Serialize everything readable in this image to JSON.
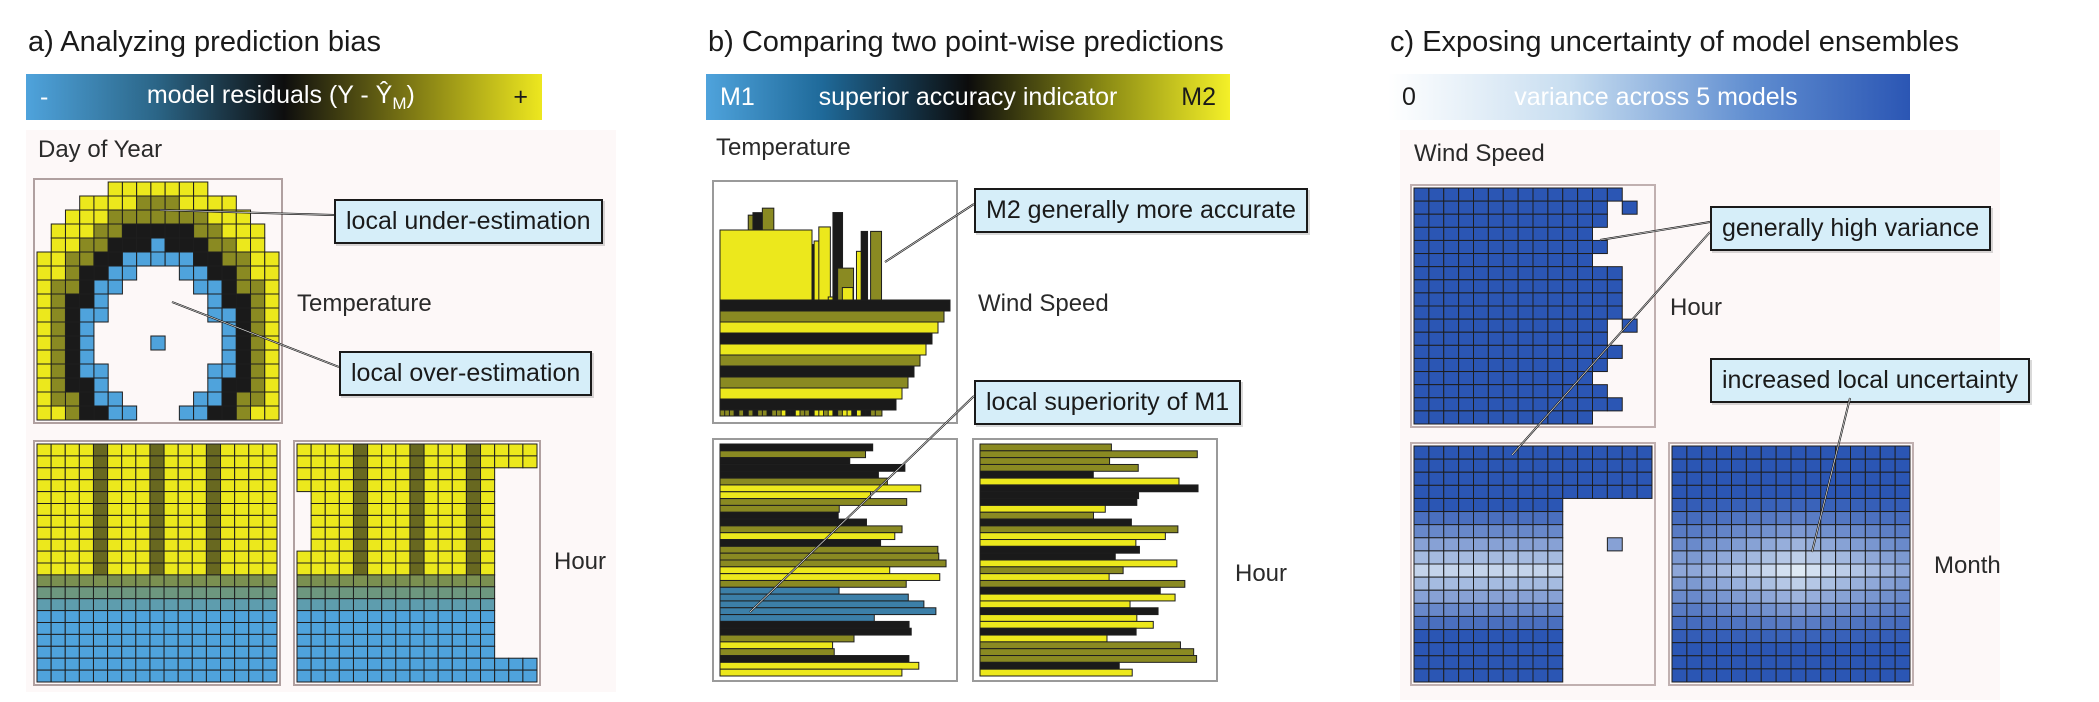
{
  "panels": [
    {
      "title": "a) Analyzing prediction bias",
      "colorbar": {
        "left": "-",
        "middle": "model residuals (Y - Ŷ",
        "subscript": "M",
        "middle_end": ")",
        "right": "+"
      },
      "axis_labels": {
        "top": "Day of Year",
        "right_top": "Temperature",
        "right_bottom": "Hour"
      },
      "callouts": [
        "local under-estimation",
        "local over-estimation"
      ]
    },
    {
      "title": "b) Comparing two point-wise predictions",
      "colorbar": {
        "left": "M1",
        "middle": "superior accuracy indicator",
        "right": "M2"
      },
      "axis_labels": {
        "top": "Temperature",
        "right_top": "Wind Speed",
        "right_bottom": "Hour"
      },
      "callouts": [
        "M2 generally more accurate",
        "local superiority of M1"
      ]
    },
    {
      "title": "c) Exposing uncertainty of model ensembles",
      "colorbar": {
        "left": "0",
        "middle": "variance across 5 models"
      },
      "axis_labels": {
        "top": "Wind Speed",
        "right_top": "Hour",
        "right_bottom": "Month"
      },
      "callouts": [
        "generally high variance",
        "increased local uncertainty"
      ]
    }
  ],
  "colors": {
    "blue": "#4fa3dc",
    "yellow": "#ece81c",
    "dark": "#1a1a1a",
    "olive": "#8a8a22",
    "ens_dark": "#2b56b4",
    "ens_light": "#dfeaf5",
    "callout_bg": "#d6eef9"
  }
}
